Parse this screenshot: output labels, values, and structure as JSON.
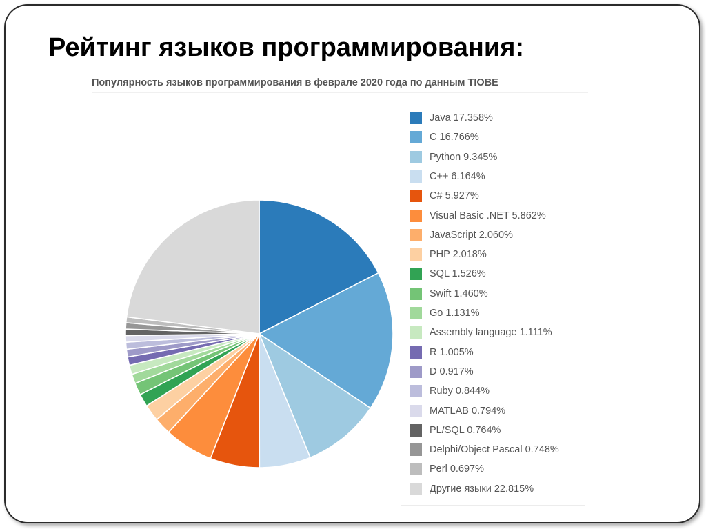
{
  "slide": {
    "title": "Рейтинг языков программирования:"
  },
  "chart_data": {
    "type": "pie",
    "title": "Популярность языков программирования в феврале 2020 года по данным TIOBE",
    "legend_position": "right",
    "start_angle_deg": 90,
    "direction": "clockwise",
    "slices": [
      {
        "label": "Java 17.358%",
        "name": "Java",
        "value": 17.358,
        "color": "#2b7bba"
      },
      {
        "label": "C 16.766%",
        "name": "C",
        "value": 16.766,
        "color": "#64a9d6"
      },
      {
        "label": "Python 9.345%",
        "name": "Python",
        "value": 9.345,
        "color": "#9ecae1"
      },
      {
        "label": "C++ 6.164%",
        "name": "C++",
        "value": 6.164,
        "color": "#c9def0"
      },
      {
        "label": "C# 5.927%",
        "name": "C#",
        "value": 5.927,
        "color": "#e6550d"
      },
      {
        "label": "Visual Basic .NET 5.862%",
        "name": "Visual Basic .NET",
        "value": 5.862,
        "color": "#fd8d3c"
      },
      {
        "label": "JavaScript 2.060%",
        "name": "JavaScript",
        "value": 2.06,
        "color": "#fdae6b"
      },
      {
        "label": "PHP 2.018%",
        "name": "PHP",
        "value": 2.018,
        "color": "#fdd0a2"
      },
      {
        "label": "SQL 1.526%",
        "name": "SQL",
        "value": 1.526,
        "color": "#31a354"
      },
      {
        "label": "Swift 1.460%",
        "name": "Swift",
        "value": 1.46,
        "color": "#74c476"
      },
      {
        "label": "Go 1.131%",
        "name": "Go",
        "value": 1.131,
        "color": "#a1d99b"
      },
      {
        "label": "Assembly language 1.111%",
        "name": "Assembly language",
        "value": 1.111,
        "color": "#c7e9c0"
      },
      {
        "label": "R 1.005%",
        "name": "R",
        "value": 1.005,
        "color": "#756bb1"
      },
      {
        "label": "D 0.917%",
        "name": "D",
        "value": 0.917,
        "color": "#9e9ac8"
      },
      {
        "label": "Ruby 0.844%",
        "name": "Ruby",
        "value": 0.844,
        "color": "#bcbddc"
      },
      {
        "label": "MATLAB 0.794%",
        "name": "MATLAB",
        "value": 0.794,
        "color": "#dadaeb"
      },
      {
        "label": "PL/SQL 0.764%",
        "name": "PL/SQL",
        "value": 0.764,
        "color": "#636363"
      },
      {
        "label": "Delphi/Object Pascal 0.748%",
        "name": "Delphi/Object Pascal",
        "value": 0.748,
        "color": "#969696"
      },
      {
        "label": "Perl 0.697%",
        "name": "Perl",
        "value": 0.697,
        "color": "#bdbdbd"
      },
      {
        "label": "Другие языки 22.815%",
        "name": "Другие языки",
        "value": 22.815,
        "color": "#d9d9d9"
      }
    ]
  }
}
